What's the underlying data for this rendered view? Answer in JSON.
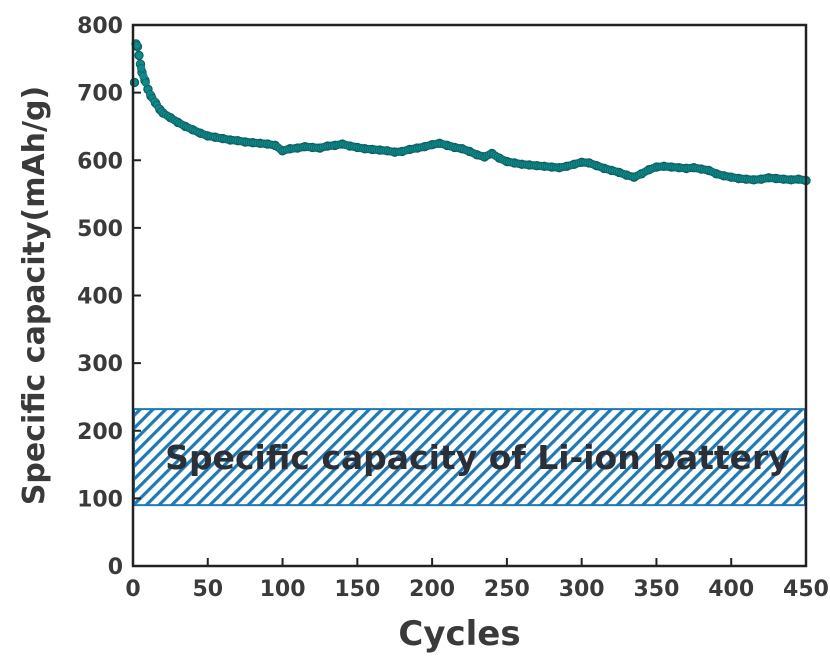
{
  "chart_data": {
    "type": "scatter",
    "xlabel": "Cycles",
    "ylabel": "Specific capacity(mAh/g)",
    "xlim": [
      0,
      450
    ],
    "ylim": [
      0,
      800
    ],
    "x_ticks": [
      "0",
      "50",
      "100",
      "150",
      "200",
      "250",
      "300",
      "350",
      "400",
      "450"
    ],
    "y_ticks": [
      "0",
      "100",
      "200",
      "300",
      "400",
      "500",
      "600",
      "700",
      "800"
    ],
    "grid": false,
    "marker_color": "#0f8a8a",
    "band": {
      "label": "Specific capacity of Li-ion battery",
      "y_range": [
        90,
        232
      ],
      "color": "#1f79b4",
      "pattern": "diagonal-hatch"
    },
    "series": [
      {
        "points": [
          [
            1,
            715
          ],
          [
            2,
            772
          ],
          [
            3,
            768
          ],
          [
            4,
            755
          ],
          [
            5,
            742
          ],
          [
            6,
            730
          ],
          [
            8,
            718
          ],
          [
            10,
            705
          ],
          [
            12,
            695
          ],
          [
            15,
            685
          ],
          [
            18,
            675
          ],
          [
            20,
            670
          ],
          [
            25,
            663
          ],
          [
            30,
            656
          ],
          [
            35,
            650
          ],
          [
            40,
            645
          ],
          [
            45,
            640
          ],
          [
            50,
            636
          ],
          [
            55,
            634
          ],
          [
            60,
            632
          ],
          [
            65,
            630
          ],
          [
            70,
            629
          ],
          [
            75,
            627
          ],
          [
            80,
            626
          ],
          [
            85,
            625
          ],
          [
            90,
            624
          ],
          [
            95,
            622
          ],
          [
            100,
            614
          ],
          [
            105,
            617
          ],
          [
            110,
            618
          ],
          [
            115,
            620
          ],
          [
            120,
            619
          ],
          [
            125,
            618
          ],
          [
            130,
            621
          ],
          [
            135,
            622
          ],
          [
            140,
            624
          ],
          [
            145,
            621
          ],
          [
            150,
            619
          ],
          [
            155,
            617
          ],
          [
            160,
            616
          ],
          [
            165,
            615
          ],
          [
            170,
            614
          ],
          [
            175,
            612
          ],
          [
            180,
            613
          ],
          [
            185,
            616
          ],
          [
            190,
            618
          ],
          [
            195,
            620
          ],
          [
            200,
            623
          ],
          [
            205,
            625
          ],
          [
            210,
            622
          ],
          [
            215,
            619
          ],
          [
            220,
            617
          ],
          [
            225,
            613
          ],
          [
            230,
            608
          ],
          [
            235,
            605
          ],
          [
            240,
            610
          ],
          [
            245,
            603
          ],
          [
            250,
            598
          ],
          [
            255,
            596
          ],
          [
            260,
            594
          ],
          [
            265,
            593
          ],
          [
            270,
            592
          ],
          [
            275,
            591
          ],
          [
            280,
            590
          ],
          [
            285,
            589
          ],
          [
            290,
            591
          ],
          [
            295,
            594
          ],
          [
            300,
            597
          ],
          [
            305,
            596
          ],
          [
            310,
            592
          ],
          [
            315,
            588
          ],
          [
            320,
            585
          ],
          [
            325,
            582
          ],
          [
            330,
            578
          ],
          [
            335,
            575
          ],
          [
            340,
            580
          ],
          [
            345,
            586
          ],
          [
            350,
            590
          ],
          [
            355,
            591
          ],
          [
            360,
            590
          ],
          [
            365,
            589
          ],
          [
            370,
            588
          ],
          [
            375,
            589
          ],
          [
            380,
            587
          ],
          [
            385,
            585
          ],
          [
            390,
            580
          ],
          [
            395,
            577
          ],
          [
            400,
            575
          ],
          [
            405,
            573
          ],
          [
            410,
            572
          ],
          [
            415,
            571
          ],
          [
            420,
            572
          ],
          [
            425,
            574
          ],
          [
            430,
            573
          ],
          [
            435,
            572
          ],
          [
            440,
            571
          ],
          [
            445,
            572
          ],
          [
            450,
            570
          ]
        ]
      }
    ]
  }
}
